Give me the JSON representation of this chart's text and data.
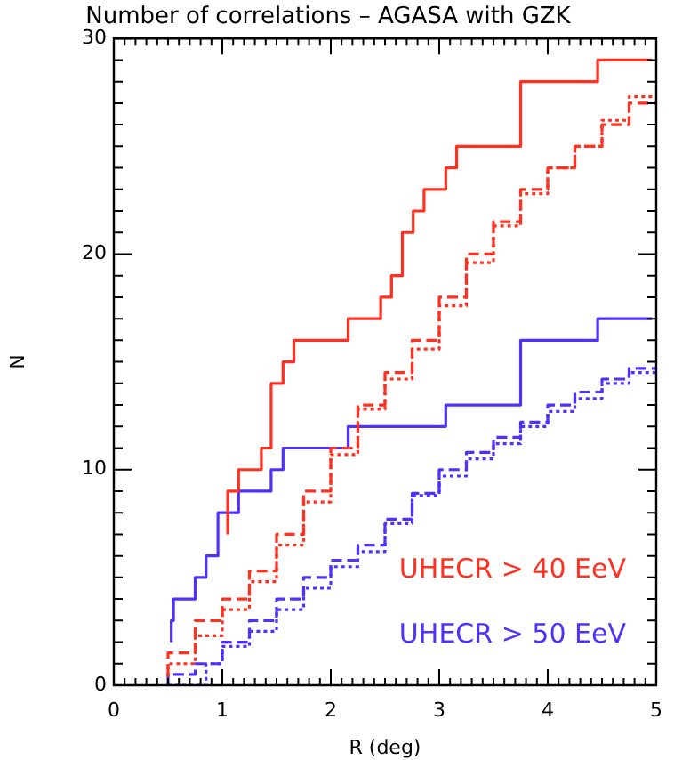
{
  "chart_data": {
    "type": "step",
    "title": "Number of correlations – AGASA with GZK",
    "xlabel": "R (deg)",
    "ylabel": "N",
    "xlim": [
      0,
      5
    ],
    "ylim": [
      0,
      30
    ],
    "xticks": [
      0,
      1,
      2,
      3,
      4,
      5
    ],
    "yticks": [
      {
        "value": 0,
        "label": "0"
      },
      {
        "value": 10,
        "label": "10"
      },
      {
        "value": 20,
        "label": "20"
      },
      {
        "value": 30,
        "label": "30"
      }
    ],
    "grid": false,
    "legend": false,
    "series": [
      {
        "name": "UHECR > 40 EeV",
        "color": "#ff3020",
        "line_style": "solid",
        "x": [
          1.05,
          1.15,
          1.36,
          1.45,
          1.56,
          1.66,
          2.16,
          2.46,
          2.56,
          2.66,
          2.76,
          2.86,
          3.06,
          3.16,
          3.75,
          4.46,
          4.96
        ],
        "values": [
          7,
          9,
          10,
          11,
          14,
          15,
          16,
          17,
          18,
          19,
          21,
          22,
          23,
          24,
          25,
          28,
          29
        ]
      },
      {
        "color": "#ff3020",
        "line_style": "dashed",
        "x": [
          0.5,
          0.75,
          1,
          1.25,
          1.5,
          1.75,
          2,
          2.25,
          2.5,
          2.75,
          3,
          3.25,
          3.5,
          3.75,
          4,
          4.25,
          4.5,
          4.75,
          5
        ],
        "values": [
          0.5,
          1.5,
          3,
          4,
          5.3,
          7,
          9,
          11,
          13,
          14.5,
          16,
          18,
          20,
          21.5,
          23,
          24,
          25,
          26,
          27
        ]
      },
      {
        "color": "#ff3020",
        "line_style": "dotted",
        "x": [
          0.5,
          0.75,
          1,
          1.25,
          1.5,
          1.75,
          2,
          2.25,
          2.5,
          2.75,
          3,
          3.25,
          3.5,
          3.75,
          4,
          4.25,
          4.5,
          4.75,
          5
        ],
        "values": [
          0.4,
          1,
          2.3,
          3.5,
          4.8,
          6.5,
          8.5,
          10.7,
          12.8,
          14.2,
          15.6,
          17.6,
          19.6,
          21.3,
          22.8,
          24,
          25,
          26.2,
          27.3
        ]
      },
      {
        "name": "UHECR > 50 EeV",
        "color": "#5030ff",
        "line_style": "solid",
        "x": [
          0.53,
          0.55,
          0.75,
          0.85,
          0.96,
          1.15,
          1.45,
          1.56,
          2.16,
          3.06,
          3.75,
          4.46,
          4.96
        ],
        "values": [
          2,
          3,
          4,
          5,
          6,
          8,
          9,
          10,
          11,
          12,
          13,
          16,
          17
        ]
      },
      {
        "color": "#5030ff",
        "line_style": "dashed",
        "x": [
          0.5,
          0.75,
          1,
          1.25,
          1.5,
          1.75,
          2,
          2.25,
          2.5,
          2.75,
          3,
          3.25,
          3.5,
          3.75,
          4,
          4.25,
          4.5,
          4.75,
          5
        ],
        "values": [
          0,
          0.5,
          1,
          2,
          3,
          4,
          5,
          5.8,
          6.5,
          7.7,
          8.9,
          10,
          10.8,
          11.5,
          12.2,
          13,
          13.6,
          14.2,
          14.7
        ]
      },
      {
        "color": "#5030ff",
        "line_style": "dotted",
        "x": [
          0.5,
          0.75,
          0.85,
          1,
          1.25,
          1.5,
          1.75,
          2,
          2.25,
          2.5,
          2.75,
          3,
          3.25,
          3.5,
          3.75,
          4,
          4.25,
          4.5,
          4.75,
          5
        ],
        "values": [
          0,
          0,
          0,
          1,
          1.8,
          2.5,
          3.5,
          4.5,
          5.5,
          6.2,
          7.5,
          8.8,
          9.7,
          10.5,
          11.2,
          12,
          12.7,
          13.3,
          14,
          14.5
        ]
      }
    ]
  }
}
